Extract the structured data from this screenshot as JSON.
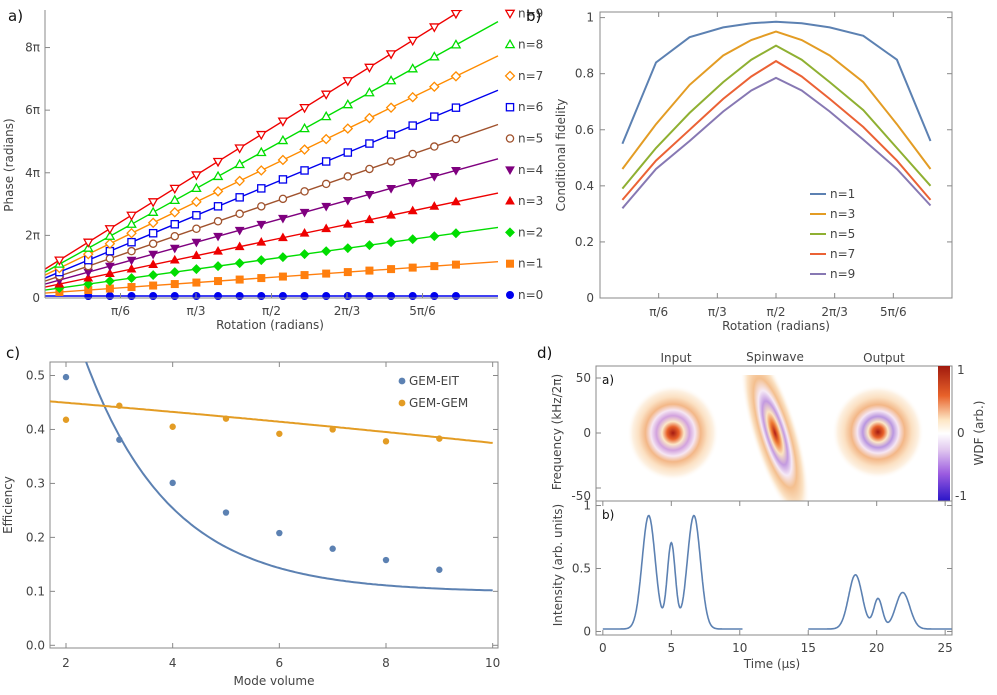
{
  "chart_data": [
    {
      "panel": "a)",
      "type": "line",
      "xlabel": "Rotation (radians)",
      "ylabel": "Phase (radians)",
      "xlim": [
        0,
        3.14159
      ],
      "ylim": [
        0,
        28.9
      ],
      "x_ticks": [
        0.5236,
        1.0472,
        1.5708,
        2.0944,
        2.618
      ],
      "x_tick_labels": [
        "π/6",
        "π/3",
        "π/2",
        "2π/3",
        "5π/6"
      ],
      "y_ticks": [
        0,
        6.2832,
        12.566,
        18.85,
        25.133
      ],
      "y_tick_labels": [
        "0",
        "2π",
        "4π",
        "6π",
        "8π"
      ],
      "marker_x": [
        0.1,
        0.3,
        0.45,
        0.6,
        0.75,
        0.9,
        1.05,
        1.2,
        1.35,
        1.5,
        1.65,
        1.8,
        1.95,
        2.1,
        2.25,
        2.4,
        2.55,
        2.7,
        2.85
      ],
      "series": [
        {
          "name": "n=0",
          "color": "#0000ee",
          "marker": "circle-filled",
          "intercept": 0.2,
          "slope": 0
        },
        {
          "name": "n=1",
          "color": "#ff7f0e",
          "marker": "square-filled",
          "intercept": 0.5,
          "slope": 1
        },
        {
          "name": "n=2",
          "color": "#00dd00",
          "marker": "diamond-filled",
          "intercept": 0.8,
          "slope": 2
        },
        {
          "name": "n=3",
          "color": "#ee0000",
          "marker": "triangle-filled",
          "intercept": 1.1,
          "slope": 3
        },
        {
          "name": "n=4",
          "color": "#7f007f",
          "marker": "triangle-down-filled",
          "intercept": 1.4,
          "slope": 4
        },
        {
          "name": "n=5",
          "color": "#a0522d",
          "marker": "circle-open",
          "intercept": 1.7,
          "slope": 5
        },
        {
          "name": "n=6",
          "color": "#0000ee",
          "marker": "square-open",
          "intercept": 2.0,
          "slope": 6
        },
        {
          "name": "n=7",
          "color": "#ff8c00",
          "marker": "diamond-open",
          "intercept": 2.3,
          "slope": 7
        },
        {
          "name": "n=8",
          "color": "#00dd00",
          "marker": "triangle-open",
          "intercept": 2.6,
          "slope": 8
        },
        {
          "name": "n=9",
          "color": "#ee0000",
          "marker": "triangle-down-open",
          "intercept": 2.9,
          "slope": 9
        }
      ]
    },
    {
      "panel": "b)",
      "type": "line",
      "xlabel": "Rotation (radians)",
      "ylabel": "Conditional fidelity",
      "xlim": [
        0,
        3.14159
      ],
      "ylim": [
        0,
        1.02
      ],
      "x_ticks": [
        0.5236,
        1.0472,
        1.5708,
        2.0944,
        2.618
      ],
      "x_tick_labels": [
        "π/6",
        "π/3",
        "π/2",
        "2π/3",
        "5π/6"
      ],
      "y_ticks": [
        0,
        0.2,
        0.4,
        0.6,
        0.8,
        1
      ],
      "y_tick_labels": [
        "0",
        "0.2",
        "0.4",
        "0.6",
        "0.8",
        "1"
      ],
      "x": [
        0.2,
        0.5,
        0.8,
        1.1,
        1.35,
        1.5708,
        1.8,
        2.05,
        2.35,
        2.65,
        2.95
      ],
      "series": [
        {
          "name": "n=1",
          "color": "#5c81b2",
          "values": [
            0.55,
            0.84,
            0.93,
            0.965,
            0.98,
            0.985,
            0.98,
            0.965,
            0.935,
            0.85,
            0.56
          ]
        },
        {
          "name": "n=3",
          "color": "#e39c24",
          "values": [
            0.46,
            0.62,
            0.76,
            0.865,
            0.92,
            0.95,
            0.92,
            0.865,
            0.77,
            0.62,
            0.46
          ]
        },
        {
          "name": "n=5",
          "color": "#8fb032",
          "values": [
            0.39,
            0.535,
            0.66,
            0.77,
            0.85,
            0.9,
            0.85,
            0.77,
            0.67,
            0.535,
            0.4
          ]
        },
        {
          "name": "n=7",
          "color": "#eb6235",
          "values": [
            0.35,
            0.49,
            0.6,
            0.71,
            0.79,
            0.845,
            0.79,
            0.71,
            0.61,
            0.49,
            0.35
          ]
        },
        {
          "name": "n=9",
          "color": "#8778b3",
          "values": [
            0.32,
            0.46,
            0.56,
            0.665,
            0.74,
            0.785,
            0.74,
            0.665,
            0.565,
            0.46,
            0.33
          ]
        }
      ]
    },
    {
      "panel": "c)",
      "type": "scatter",
      "xlabel": "Mode volume",
      "ylabel": "Efficiency",
      "xlim": [
        1.7,
        10.1
      ],
      "ylim": [
        -0.005,
        0.525
      ],
      "x_ticks": [
        2,
        4,
        6,
        8,
        10
      ],
      "x_tick_labels": [
        "2",
        "4",
        "6",
        "8",
        "10"
      ],
      "y_ticks": [
        0,
        0.1,
        0.2,
        0.3,
        0.4,
        0.5
      ],
      "y_tick_labels": [
        "0.0",
        "0.1",
        "0.2",
        "0.3",
        "0.4",
        "0.5"
      ],
      "x": [
        2,
        3,
        4,
        5,
        6,
        7,
        8,
        9
      ],
      "series": [
        {
          "name": "GEM-EIT",
          "color": "#5c81b2",
          "values": [
            0.497,
            0.381,
            0.301,
            0.246,
            0.208,
            0.179,
            0.158,
            0.14
          ],
          "fit": {
            "a": 0.65,
            "b": 0.62,
            "c": 0.098
          }
        },
        {
          "name": "GEM-GEM",
          "color": "#e39c24",
          "values": [
            0.418,
            0.444,
            0.405,
            0.42,
            0.392,
            0.4,
            0.378,
            0.383
          ],
          "fit": {
            "start": 0.452,
            "end": 0.375
          }
        }
      ]
    },
    {
      "panel": "d)",
      "type": "heatmap",
      "sub_panel": "a)",
      "ylabel": "Frequency (kHz/2π)",
      "y_tick_labels": [
        "50",
        "0",
        "-50"
      ],
      "columns": [
        "Input",
        "Spinwave",
        "Output"
      ],
      "colorbar_label": "WDF (arb.)",
      "colorbar_ticks": [
        "1",
        "0",
        "-1"
      ]
    },
    {
      "panel": "d)",
      "type": "line",
      "sub_panel": "b)",
      "xlabel": "Time (µs)",
      "ylabel": "Intensity (arb. units)",
      "xlim": [
        -0.5,
        25.5
      ],
      "ylim": [
        -0.02,
        1.02
      ],
      "x_ticks": [
        0,
        5,
        10,
        15,
        20,
        25
      ],
      "x_tick_labels": [
        "0",
        "5",
        "10",
        "15",
        "20",
        "25"
      ],
      "y_ticks": [
        0,
        0.5,
        1
      ],
      "y_tick_labels": [
        "0",
        "0.5",
        "1"
      ],
      "color": "#5c81b2",
      "baseline": 0.02,
      "segments": [
        [
          0,
          10.2
        ],
        [
          15,
          25.5
        ]
      ],
      "pulses": [
        {
          "center": 3.35,
          "amplitude": 0.9,
          "width": 0.48
        },
        {
          "center": 5.0,
          "amplitude": 0.68,
          "width": 0.3
        },
        {
          "center": 6.65,
          "amplitude": 0.9,
          "width": 0.48
        },
        {
          "center": 18.45,
          "amplitude": 0.43,
          "width": 0.5
        },
        {
          "center": 20.1,
          "amplitude": 0.24,
          "width": 0.32
        },
        {
          "center": 21.9,
          "amplitude": 0.29,
          "width": 0.52
        }
      ]
    }
  ]
}
